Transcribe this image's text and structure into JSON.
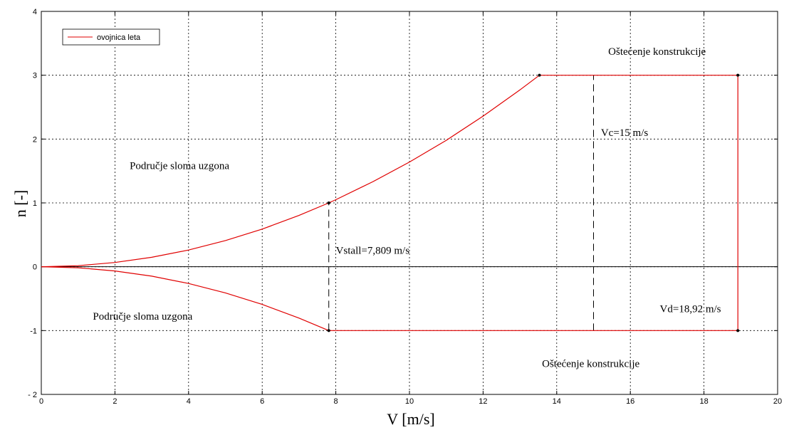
{
  "chart_data": {
    "type": "line",
    "title": "",
    "xlabel": "V [m/s]",
    "ylabel": "n [-]",
    "xlim": [
      0,
      20
    ],
    "ylim": [
      -2,
      4
    ],
    "xticks": [
      0,
      2,
      4,
      6,
      8,
      10,
      12,
      14,
      16,
      18,
      20
    ],
    "yticks": [
      -2,
      -1,
      0,
      1,
      2,
      3,
      4
    ],
    "xtick_labels": [
      "0",
      "2",
      "4",
      "6",
      "8",
      "10",
      "12",
      "14",
      "16",
      "18",
      "20"
    ],
    "ytick_labels": [
      "- 2",
      "-1",
      "0",
      "1",
      "2",
      "3",
      "4"
    ],
    "grid": true,
    "legend": {
      "position": "top-left",
      "entries": [
        "ovojnica leta"
      ]
    },
    "series": [
      {
        "name": "ovojnica leta",
        "color": "#e00000",
        "segments": [
          {
            "x": [
              0,
              1,
              2,
              3,
              4,
              5,
              6,
              7,
              7.809,
              8,
              9,
              10,
              11,
              12,
              13,
              13.53
            ],
            "y": [
              0,
              0.016,
              0.066,
              0.148,
              0.262,
              0.41,
              0.59,
              0.804,
              1,
              1.05,
              1.33,
              1.64,
              1.98,
              2.36,
              2.77,
              3
            ]
          },
          {
            "x": [
              13.53,
              18.92
            ],
            "y": [
              3,
              3
            ]
          },
          {
            "x": [
              18.92,
              18.92
            ],
            "y": [
              3,
              -1
            ]
          },
          {
            "x": [
              7.809,
              18.92
            ],
            "y": [
              -1,
              -1
            ]
          },
          {
            "x": [
              0,
              1,
              2,
              3,
              4,
              5,
              6,
              7,
              7.809
            ],
            "y": [
              0,
              -0.016,
              -0.066,
              -0.148,
              -0.262,
              -0.41,
              -0.59,
              -0.804,
              -1
            ]
          }
        ]
      }
    ],
    "markers": [
      {
        "x": 7.809,
        "y": 1
      },
      {
        "x": 7.809,
        "y": -1
      },
      {
        "x": 13.53,
        "y": 3
      },
      {
        "x": 18.92,
        "y": 3
      },
      {
        "x": 18.92,
        "y": -1
      }
    ],
    "reference_lines": [
      {
        "x": 7.809,
        "y": [
          -1,
          1
        ],
        "style": "dashed"
      },
      {
        "x": 15,
        "y": [
          -1,
          3
        ],
        "style": "dashed"
      }
    ],
    "annotations": [
      {
        "text": "Oštećenje konstrukcije",
        "x": 15.4,
        "y": 3.32
      },
      {
        "text": "Vc=15 m/s",
        "x": 15.2,
        "y": 2.05
      },
      {
        "text": "Područje sloma uzgona",
        "x": 2.4,
        "y": 1.53
      },
      {
        "text": "Vstall=7,809 m/s",
        "x": 8.0,
        "y": 0.2
      },
      {
        "text": "Područje sloma uzgona",
        "x": 1.4,
        "y": -0.83
      },
      {
        "text": "Vd=18,92 m/s",
        "x": 16.8,
        "y": -0.71
      },
      {
        "text": "Oštećenje konstrukcije",
        "x": 13.6,
        "y": -1.57
      }
    ]
  }
}
